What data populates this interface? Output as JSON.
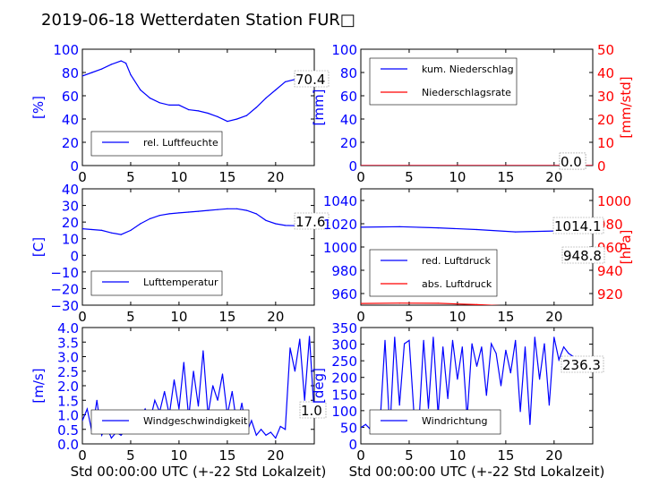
{
  "title": "2019-06-18 Wetterdaten Station FUR□",
  "colors": {
    "blue": "#0000ff",
    "red": "#ff0000",
    "axis": "#000000",
    "light_blue": "#8080ff"
  },
  "chart_data": [
    {
      "type": "line",
      "ylabel": "[%]",
      "xlim": [
        0,
        24
      ],
      "ylim": [
        0,
        100
      ],
      "xticks": [
        "0",
        "5",
        "10",
        "15",
        "20"
      ],
      "yticks": [
        "0",
        "20",
        "40",
        "60",
        "80",
        "100"
      ],
      "legend": "lower left",
      "annotations": [
        {
          "text": "70.4"
        }
      ],
      "series": [
        {
          "name": "rel. Luftfeuchte",
          "color": "#0000ff",
          "x": [
            0,
            1,
            2,
            3,
            4,
            4.5,
            5,
            6,
            7,
            8,
            9,
            10,
            11,
            12,
            13,
            14,
            15,
            16,
            17,
            18,
            19,
            20,
            21,
            22,
            23,
            24
          ],
          "y": [
            77,
            80,
            83,
            87,
            90,
            88,
            78,
            65,
            58,
            54,
            52,
            52,
            48,
            47,
            45,
            42,
            38,
            40,
            43,
            50,
            58,
            65,
            72,
            74,
            70,
            70.4
          ]
        }
      ]
    },
    {
      "type": "line",
      "ylabel": "[mm]",
      "y2label": "[mm/std]",
      "xlim": [
        0,
        24
      ],
      "ylim": [
        0,
        100
      ],
      "y2lim": [
        0,
        50
      ],
      "xticks": [
        "0",
        "5",
        "10",
        "15",
        "20"
      ],
      "yticks": [
        "0",
        "20",
        "40",
        "60",
        "80",
        "100"
      ],
      "y2ticks": [
        "0",
        "10",
        "20",
        "30",
        "40",
        "50"
      ],
      "legend": "upper left",
      "annotations": [
        {
          "text": "0.0"
        },
        {
          "text": "0.0"
        }
      ],
      "series": [
        {
          "name": "kum. Niederschlag",
          "color": "#0000ff",
          "x": [
            0,
            24
          ],
          "y": [
            0,
            0
          ]
        },
        {
          "name": "Niederschlagsrate",
          "color": "#ff0000",
          "x": [
            0,
            24
          ],
          "y": [
            0,
            0
          ]
        }
      ]
    },
    {
      "type": "line",
      "ylabel": "[C]",
      "xlim": [
        0,
        24
      ],
      "ylim": [
        -30,
        40
      ],
      "xticks": [
        "0",
        "5",
        "10",
        "15",
        "20"
      ],
      "yticks": [
        "−30",
        "−20",
        "−10",
        "0",
        "10",
        "20",
        "30",
        "40"
      ],
      "legend": "lower left",
      "annotations": [
        {
          "text": "17.6"
        }
      ],
      "series": [
        {
          "name": "Lufttemperatur",
          "color": "#0000ff",
          "x": [
            0,
            1,
            2,
            3,
            4,
            5,
            6,
            7,
            8,
            9,
            10,
            11,
            12,
            13,
            14,
            15,
            16,
            17,
            18,
            19,
            20,
            21,
            22,
            23,
            24
          ],
          "y": [
            16,
            15.5,
            15,
            13.5,
            12.5,
            15,
            19,
            22,
            24,
            25,
            25.5,
            26,
            26.5,
            27,
            27.5,
            28,
            28,
            27,
            25,
            21,
            19,
            18,
            17.8,
            17.6,
            17.6
          ]
        }
      ]
    },
    {
      "type": "line",
      "ylabel": "",
      "y2label": "[hPa]",
      "xlim": [
        0,
        24
      ],
      "ylim": [
        950,
        1050
      ],
      "y2lim": [
        910,
        1010
      ],
      "xticks": [
        "0",
        "5",
        "10",
        "15",
        "20"
      ],
      "yticks": [
        "960",
        "980",
        "1000",
        "1020",
        "1040"
      ],
      "y2ticks": [
        "920",
        "940",
        "960",
        "980",
        "1000"
      ],
      "legend": "lower left",
      "annotations": [
        {
          "text": "1014.1"
        },
        {
          "text": "948.8"
        }
      ],
      "series": [
        {
          "name": "red. Luftdruck",
          "color": "#0000ff",
          "x": [
            0,
            4,
            8,
            12,
            16,
            20,
            24
          ],
          "y": [
            1017,
            1017.5,
            1016.5,
            1015,
            1013,
            1013.8,
            1014.1
          ]
        },
        {
          "name": "abs. Luftdruck",
          "color": "#ff0000",
          "x": [
            0,
            4,
            8,
            12,
            16,
            20,
            24
          ],
          "y": [
            951.5,
            951.8,
            951.6,
            950.5,
            949,
            948.6,
            948.8
          ]
        }
      ]
    },
    {
      "type": "line",
      "ylabel": "[m/s]",
      "xlabel": "Std 00:00:00 UTC (+-22 Std Lokalzeit)",
      "xlim": [
        0,
        24
      ],
      "ylim": [
        0,
        4
      ],
      "xticks": [
        "0",
        "5",
        "10",
        "15",
        "20"
      ],
      "yticks": [
        "0.0",
        "0.5",
        "1.0",
        "1.5",
        "2.0",
        "2.5",
        "3.0",
        "3.5",
        "4.0"
      ],
      "legend": "lower left",
      "annotations": [
        {
          "text": "1.0"
        }
      ],
      "series": [
        {
          "name": "Windgeschwindigkeit",
          "color": "#0000ff",
          "x": [
            0,
            0.5,
            1,
            1.5,
            2,
            2.5,
            3,
            3.5,
            4,
            4.5,
            5,
            5.5,
            6,
            6.5,
            7,
            7.5,
            8,
            8.5,
            9,
            9.5,
            10,
            10.5,
            11,
            11.5,
            12,
            12.5,
            13,
            13.5,
            14,
            14.5,
            15,
            15.5,
            16,
            16.5,
            17,
            17.5,
            18,
            18.5,
            19,
            19.5,
            20,
            20.5,
            21,
            21.5,
            22,
            22.5,
            23,
            23.5,
            24
          ],
          "y": [
            0.8,
            1.2,
            0.4,
            1.5,
            0.3,
            0.6,
            0.2,
            0.4,
            0.3,
            0.5,
            0.6,
            0.8,
            0.9,
            1.2,
            0.8,
            1.5,
            1.1,
            1.8,
            1.0,
            2.2,
            1.2,
            2.8,
            0.9,
            2.5,
            1.3,
            3.2,
            1.0,
            2.0,
            1.5,
            2.4,
            1.0,
            1.8,
            0.6,
            1.4,
            0.4,
            0.8,
            0.3,
            0.5,
            0.3,
            0.4,
            0.2,
            0.6,
            0.5,
            3.3,
            2.5,
            3.6,
            1.5,
            3.7,
            1.0
          ]
        }
      ]
    },
    {
      "type": "line",
      "ylabel": "[deg]",
      "xlabel": "Std 00:00:00 UTC (+-22 Std Lokalzeit)",
      "xlim": [
        0,
        24
      ],
      "ylim": [
        0,
        360
      ],
      "xticks": [
        "0",
        "5",
        "10",
        "15",
        "20"
      ],
      "yticks": [
        "0",
        "50",
        "100",
        "150",
        "200",
        "250",
        "300",
        "350"
      ],
      "legend": "lower left",
      "annotations": [
        {
          "text": "236.3"
        }
      ],
      "series": [
        {
          "name": "Windrichtung",
          "color": "#0000ff",
          "x": [
            0,
            0.5,
            1,
            1.5,
            2,
            2.5,
            3,
            3.5,
            4,
            4.5,
            5,
            5.5,
            6,
            6.5,
            7,
            7.5,
            8,
            8.5,
            9,
            9.5,
            10,
            10.5,
            11,
            11.5,
            12,
            12.5,
            13,
            13.5,
            14,
            14.5,
            15,
            15.5,
            16,
            16.5,
            17,
            17.5,
            18,
            18.5,
            19,
            19.5,
            20,
            20.5,
            21,
            21.5,
            22,
            22.5,
            23,
            23.5,
            24
          ],
          "y": [
            50,
            60,
            45,
            80,
            70,
            320,
            40,
            330,
            120,
            310,
            320,
            90,
            60,
            320,
            110,
            330,
            90,
            300,
            140,
            320,
            200,
            300,
            80,
            310,
            240,
            300,
            150,
            310,
            280,
            180,
            290,
            220,
            320,
            100,
            300,
            60,
            330,
            200,
            310,
            120,
            330,
            260,
            300,
            280,
            270,
            260,
            250,
            240,
            236.3
          ]
        }
      ]
    }
  ]
}
